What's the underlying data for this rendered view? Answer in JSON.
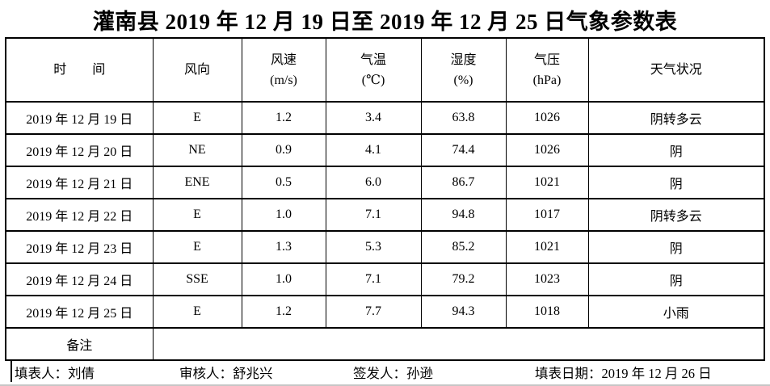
{
  "title": "灌南县 2019 年 12 月 19 日至 2019 年 12 月 25 日气象参数表",
  "colors": {
    "text": "#000000",
    "background": "#ffffff",
    "border": "#000000"
  },
  "table": {
    "headers": [
      {
        "label": "时　　间",
        "unit": ""
      },
      {
        "label": "风向",
        "unit": ""
      },
      {
        "label": "风速",
        "unit": "(m/s)"
      },
      {
        "label": "气温",
        "unit": "(℃)"
      },
      {
        "label": "湿度",
        "unit": "(%)"
      },
      {
        "label": "气压",
        "unit": "(hPa)"
      },
      {
        "label": "天气状况",
        "unit": ""
      }
    ],
    "rows": [
      [
        "2019 年 12 月 19 日",
        "E",
        "1.2",
        "3.4",
        "63.8",
        "1026",
        "阴转多云"
      ],
      [
        "2019 年 12 月 20 日",
        "NE",
        "0.9",
        "4.1",
        "74.4",
        "1026",
        "阴"
      ],
      [
        "2019 年 12 月 21 日",
        "ENE",
        "0.5",
        "6.0",
        "86.7",
        "1021",
        "阴"
      ],
      [
        "2019 年 12 月 22 日",
        "E",
        "1.0",
        "7.1",
        "94.8",
        "1017",
        "阴转多云"
      ],
      [
        "2019 年 12 月 23 日",
        "E",
        "1.3",
        "5.3",
        "85.2",
        "1021",
        "阴"
      ],
      [
        "2019 年 12 月 24 日",
        "SSE",
        "1.0",
        "7.1",
        "79.2",
        "1023",
        "阴"
      ],
      [
        "2019 年 12 月 25 日",
        "E",
        "1.2",
        "7.7",
        "94.3",
        "1018",
        "小雨"
      ]
    ],
    "remarks": {
      "label": "备注",
      "value": ""
    }
  },
  "footer": {
    "filled_by": "填表人：刘倩",
    "reviewed_by": "审核人：舒兆兴",
    "issued_by": "签发人：孙逊",
    "fill_date": "填表日期：2019 年 12 月 26 日"
  }
}
